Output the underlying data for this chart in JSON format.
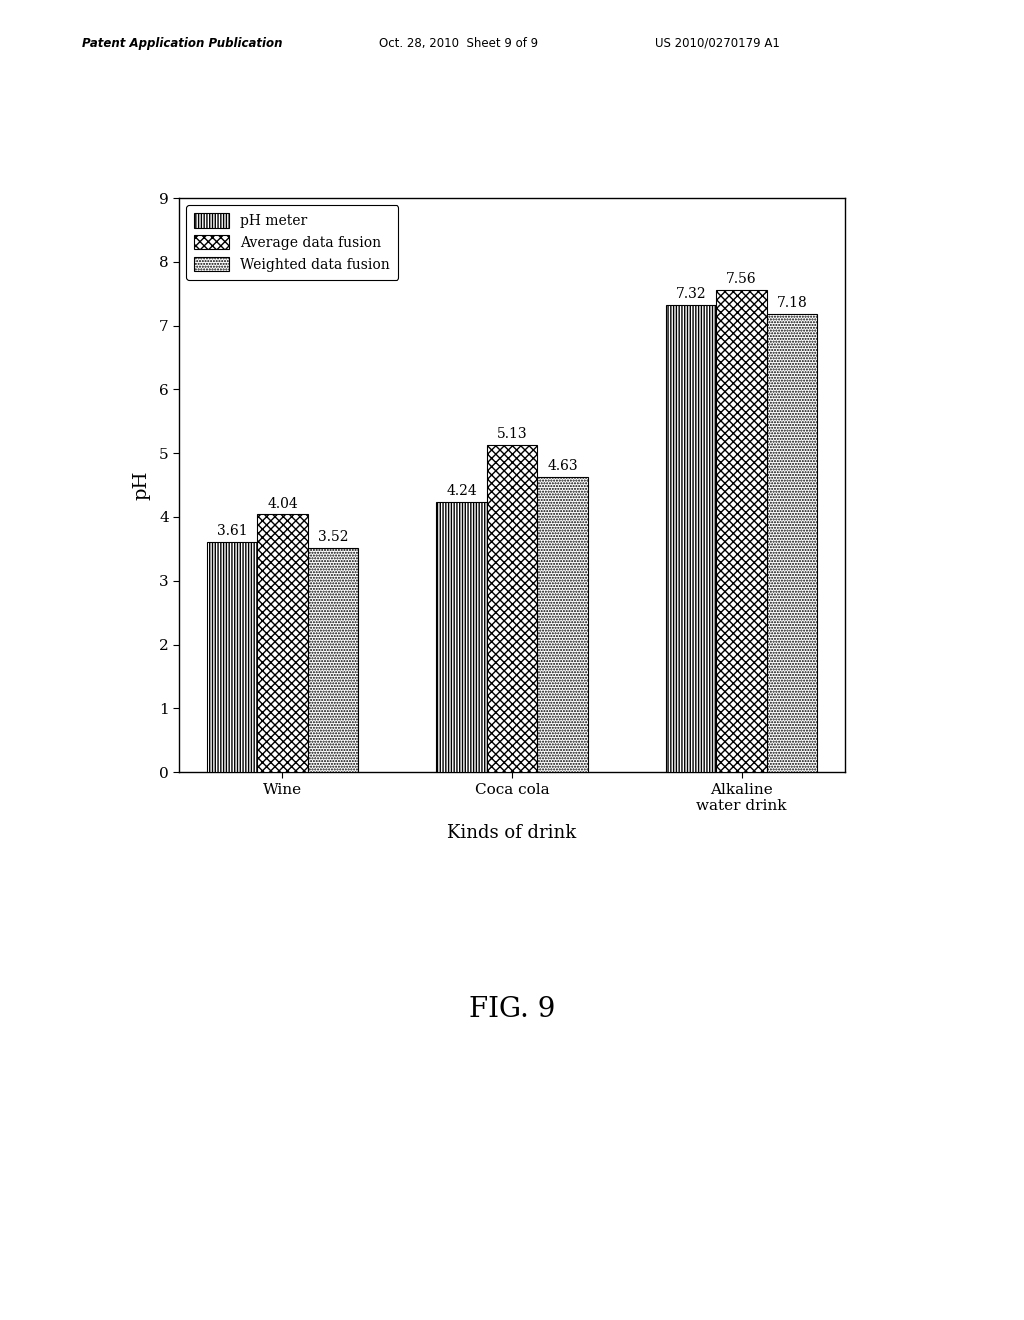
{
  "categories": [
    "Wine",
    "Coca cola",
    "Alkaline\nwater drink"
  ],
  "series": [
    {
      "label": "pH meter",
      "values": [
        3.61,
        4.24,
        7.32
      ],
      "hatch": "|||"
    },
    {
      "label": "Average data fusion",
      "values": [
        4.04,
        5.13,
        7.56
      ],
      "hatch": "xxx"
    },
    {
      "label": "Weighted data fusion",
      "values": [
        3.52,
        4.63,
        7.18
      ],
      "hatch": "..."
    }
  ],
  "bar_color": "#ffffff",
  "bar_edgecolor": "#000000",
  "ylabel": "pH",
  "xlabel": "Kinds of drink",
  "ylim": [
    0,
    9
  ],
  "yticks": [
    0,
    1,
    2,
    3,
    4,
    5,
    6,
    7,
    8,
    9
  ],
  "fig_title": "FIG. 9",
  "header_left": "Patent Application Publication",
  "header_mid": "Oct. 28, 2010  Sheet 9 of 9",
  "header_right": "US 2010/0270179 A1",
  "bar_width": 0.22,
  "legend_fontsize": 10,
  "axis_fontsize": 13,
  "tick_fontsize": 11,
  "value_fontsize": 10,
  "hatch_patterns": [
    "||||||",
    "xxxx",
    "......"
  ]
}
